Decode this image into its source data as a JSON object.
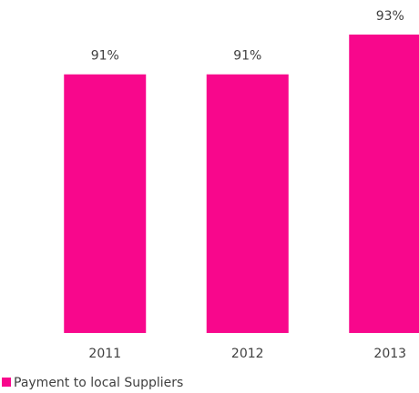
{
  "chart_data": {
    "type": "bar",
    "categories": [
      "2011",
      "2012",
      "2013"
    ],
    "series": [
      {
        "name": "Payment to local Suppliers",
        "color": "#f8078c",
        "values": [
          91,
          91,
          93
        ],
        "value_labels": [
          "91%",
          "91%",
          "93%"
        ]
      }
    ],
    "ylim": [
      78,
      93
    ]
  }
}
